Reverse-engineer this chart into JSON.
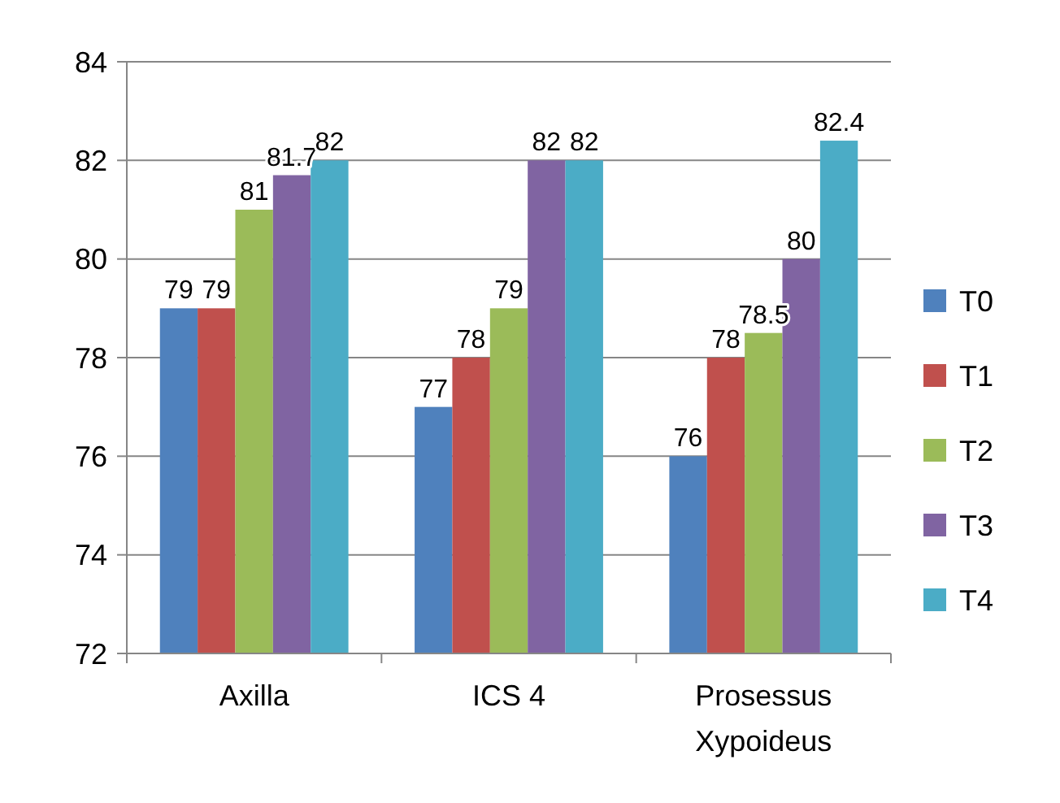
{
  "chart_data": {
    "type": "bar",
    "categories": [
      "Axilla",
      "ICS 4",
      "Prosessus Xypoideus"
    ],
    "series": [
      {
        "name": "T0",
        "color": "#4f81bd",
        "values": [
          79,
          77,
          76
        ]
      },
      {
        "name": "T1",
        "color": "#c0504d",
        "values": [
          79,
          78,
          78
        ]
      },
      {
        "name": "T2",
        "color": "#9bbb59",
        "values": [
          81,
          79,
          78.5
        ]
      },
      {
        "name": "T3",
        "color": "#8064a2",
        "values": [
          81.7,
          82,
          80
        ]
      },
      {
        "name": "T4",
        "color": "#4bacc6",
        "values": [
          82,
          82,
          82.4
        ]
      }
    ],
    "ylim": [
      72,
      84
    ],
    "yticks": [
      72,
      74,
      76,
      78,
      80,
      82,
      84
    ],
    "grid": "y",
    "legend": "right",
    "data_labels": true
  }
}
